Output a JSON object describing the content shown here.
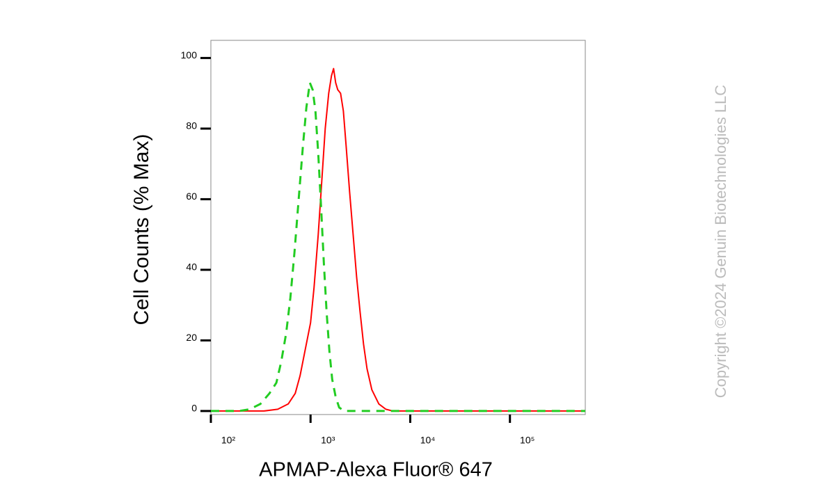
{
  "chart_data": {
    "type": "line",
    "x_label": "APMAP-Alexa Fluor® 647",
    "y_label": "Cell Counts (% Max)",
    "watermark": "Copyright ©2024 Genuin Biotechnologies LLC",
    "x_scale": "log",
    "xlim": [
      100,
      570000
    ],
    "xticks": [
      {
        "value": 100,
        "label": "10²"
      },
      {
        "value": 1000,
        "label": "10³"
      },
      {
        "value": 10000,
        "label": "10⁴"
      },
      {
        "value": 100000,
        "label": "10⁵"
      }
    ],
    "ylim": [
      -1,
      105
    ],
    "yticks": [
      0,
      20,
      40,
      60,
      80,
      100
    ],
    "series": [
      {
        "color": "#ff0000",
        "dash": false,
        "x": [
          100,
          340,
          469,
          597,
          702,
          785,
          893,
          1000,
          1084,
          1194,
          1295,
          1403,
          1521,
          1622,
          1702,
          1786,
          1874,
          2000,
          2133,
          2275,
          2466,
          2673,
          2897,
          3141,
          3398,
          3683,
          4121,
          4842,
          5689,
          6683,
          570000
        ],
        "values": [
          0,
          0,
          0.5,
          2,
          5,
          10,
          18,
          25,
          35,
          50,
          65,
          80,
          90,
          95,
          97,
          93,
          91,
          90,
          85,
          75,
          62,
          50,
          38,
          28,
          19,
          12,
          6,
          2,
          0.5,
          0,
          0
        ]
      },
      {
        "color": "#22cc22",
        "dash": true,
        "x": [
          100,
          194,
          246,
          314,
          387,
          454,
          508,
          569,
          627,
          690,
          760,
          838,
          908,
          984,
          1050,
          1119,
          1194,
          1274,
          1359,
          1449,
          1545,
          1648,
          1786,
          1936,
          2168,
          570000
        ],
        "values": [
          0,
          0,
          0.5,
          2,
          5,
          8,
          14,
          22,
          32,
          45,
          60,
          75,
          86,
          93,
          91,
          85,
          73,
          58,
          42,
          28,
          17,
          9,
          4,
          1,
          0,
          0
        ]
      }
    ]
  }
}
